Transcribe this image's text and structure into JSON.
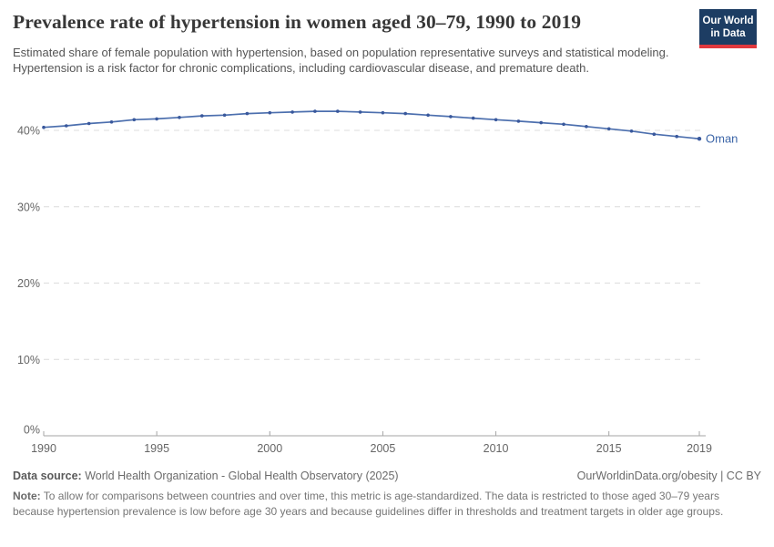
{
  "header": {
    "title": "Prevalence rate of hypertension in women aged 30–79, 1990 to 2019",
    "subtitle": "Estimated share of female population with hypertension, based on population representative surveys and statistical modeling. Hypertension is a risk factor for chronic complications, including cardiovascular disease, and premature death.",
    "logo_line1": "Our World",
    "logo_line2": "in Data"
  },
  "chart_data": {
    "type": "line",
    "title": "Prevalence rate of hypertension in women aged 30–79, 1990 to 2019",
    "xlabel": "",
    "ylabel": "",
    "x": [
      1990,
      1991,
      1992,
      1993,
      1994,
      1995,
      1996,
      1997,
      1998,
      1999,
      2000,
      2001,
      2002,
      2003,
      2004,
      2005,
      2006,
      2007,
      2008,
      2009,
      2010,
      2011,
      2012,
      2013,
      2014,
      2015,
      2016,
      2017,
      2018,
      2019
    ],
    "series": [
      {
        "name": "Oman",
        "color": "#4c6fae",
        "dot_color": "#39589c",
        "label_color": "#3d66a8",
        "values": [
          40.4,
          40.6,
          40.9,
          41.1,
          41.4,
          41.5,
          41.7,
          41.9,
          42.0,
          42.2,
          42.3,
          42.4,
          42.5,
          42.5,
          42.4,
          42.3,
          42.2,
          42.0,
          41.8,
          41.6,
          41.4,
          41.2,
          41.0,
          40.8,
          40.5,
          40.2,
          39.9,
          39.5,
          39.2,
          38.9
        ]
      }
    ],
    "xticks": [
      1990,
      1995,
      2000,
      2005,
      2010,
      2015,
      2019
    ],
    "yticks": [
      0,
      10,
      20,
      30,
      40
    ],
    "ytick_suffix": "%",
    "xlim": [
      1990,
      2019
    ],
    "ylim": [
      0,
      43
    ],
    "grid": "dashed-horizontal",
    "legend_position": "line-end-label"
  },
  "footer": {
    "source_label": "Data source:",
    "source_text": " World Health Organization - Global Health Observatory (2025)",
    "credit": "OurWorldinData.org/obesity | CC BY",
    "note_label": "Note:",
    "note_text": " To allow for comparisons between countries and over time, this metric is age-standardized. The data is restricted to those aged 30–79 years because hypertension prevalence is low before age 30 years and because guidelines differ in thresholds and treatment targets in older age groups."
  },
  "colors": {
    "line": "#4c6fae",
    "dot": "#39589c",
    "series_label": "#3d66a8",
    "logo_bg": "#1d3d63",
    "logo_accent": "#e0383e",
    "gridline": "#dcdcdc",
    "axis": "#a5a5a5",
    "axis_text": "#666666"
  }
}
